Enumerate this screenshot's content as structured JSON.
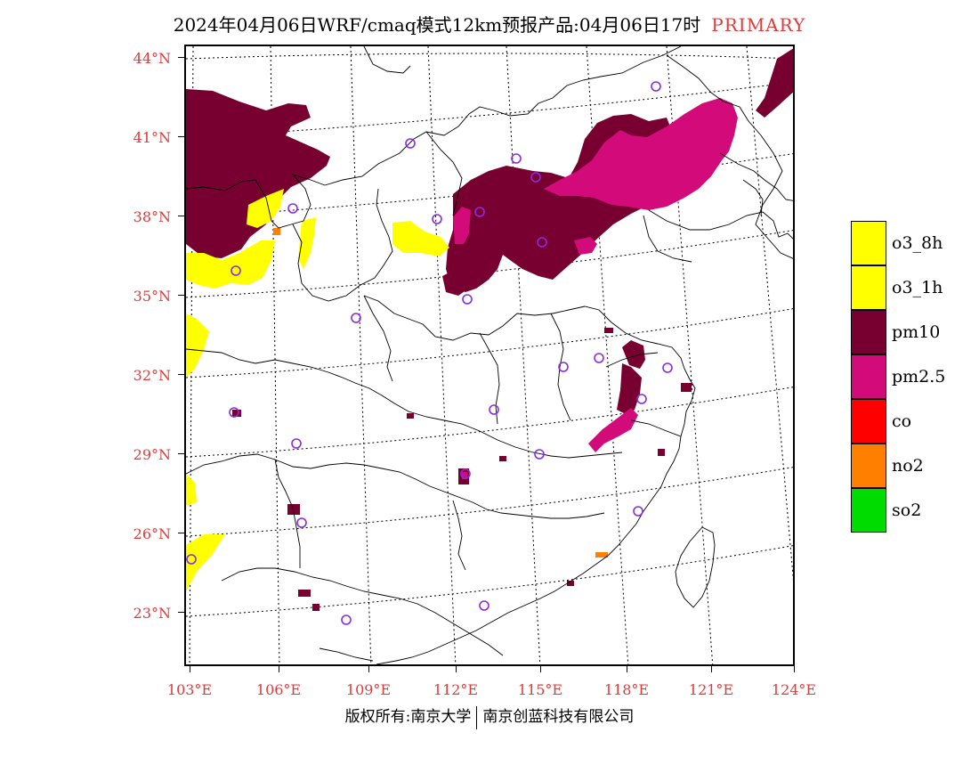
{
  "header": {
    "title": "2024年04月06日WRF/cmaq模式12km预报产品:04月06日17时",
    "status": "PRIMARY",
    "status_color": "#e03a3a"
  },
  "axes": {
    "lat_labels": [
      "44°N",
      "41°N",
      "38°N",
      "35°N",
      "32°N",
      "29°N",
      "26°N",
      "23°N"
    ],
    "lon_labels": [
      "103°E",
      "106°E",
      "109°E",
      "112°E",
      "115°E",
      "118°E",
      "121°E",
      "124°E"
    ]
  },
  "legend": {
    "items": [
      {
        "label": "o3_8h",
        "color": "#ffff00"
      },
      {
        "label": "o3_1h",
        "color": "#ffff00"
      },
      {
        "label": "pm10",
        "color": "#780030"
      },
      {
        "label": "pm2.5",
        "color": "#d20a7a"
      },
      {
        "label": "co",
        "color": "#ff0000"
      },
      {
        "label": "no2",
        "color": "#ff7f00"
      },
      {
        "label": "so2",
        "color": "#00dc00"
      }
    ]
  },
  "footer": {
    "left": "版权所有:南京大学",
    "right": "南京创蓝科技有限公司"
  }
}
